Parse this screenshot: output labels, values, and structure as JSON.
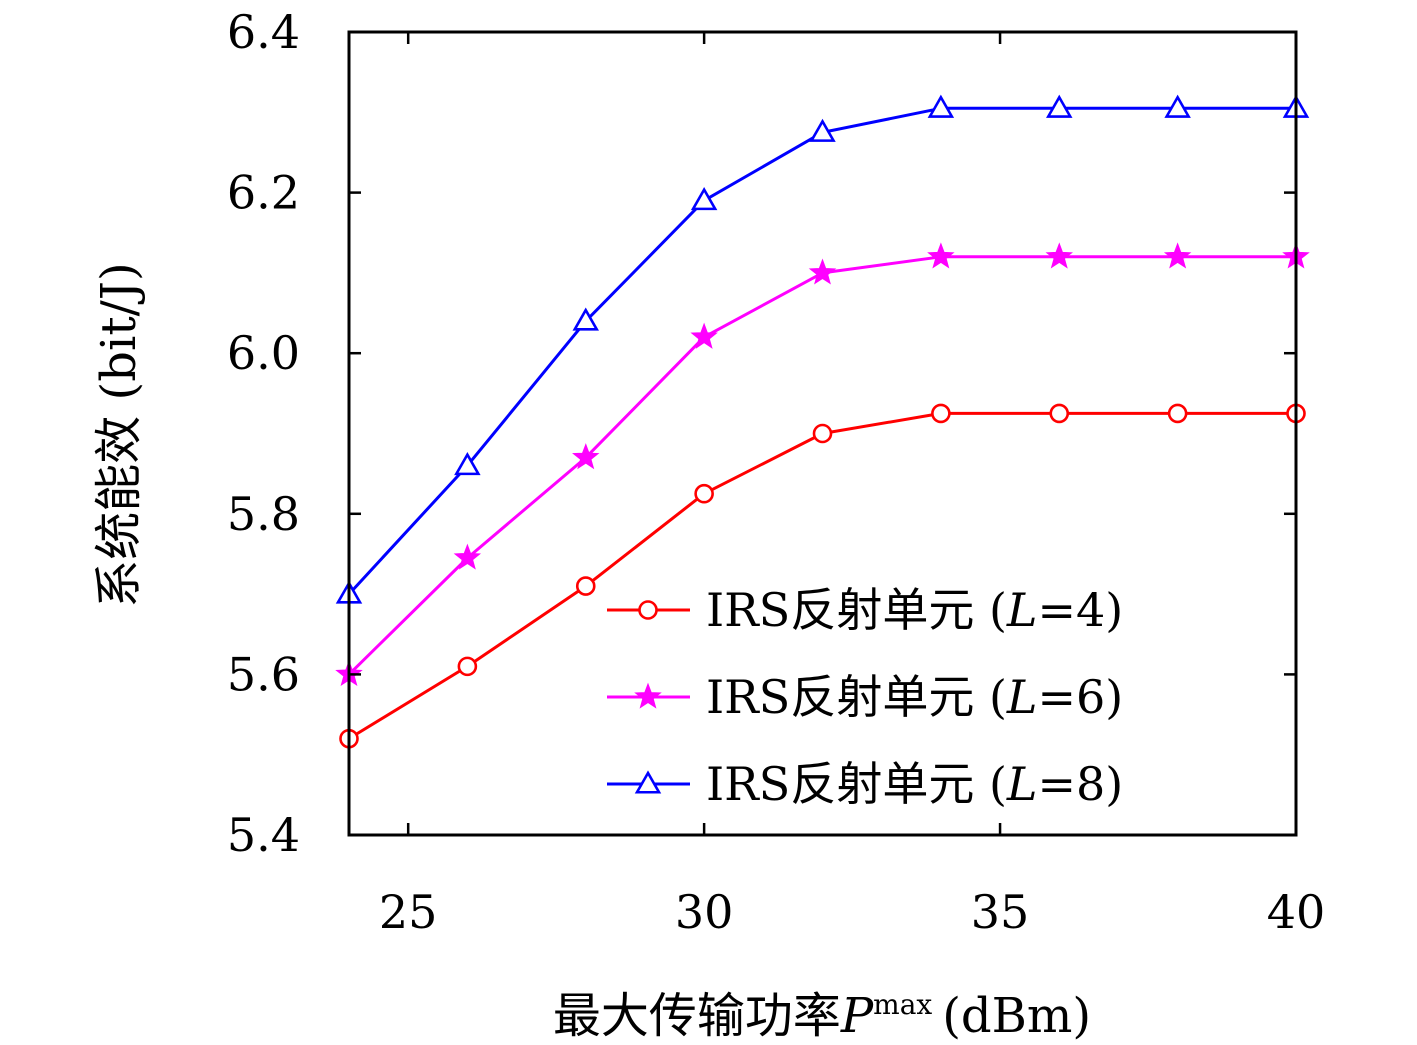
{
  "chart_data": {
    "type": "line",
    "xlabel_prefix": "最大传输功率",
    "xlabel_symbol": "P",
    "xlabel_sup": "max",
    "xlabel_unit": "(dBm)",
    "ylabel": "系统能效 (bit/J)",
    "xlim": [
      24,
      40
    ],
    "ylim": [
      5.4,
      6.4
    ],
    "xticks": [
      25,
      30,
      35,
      40
    ],
    "xtick_labels": [
      "25",
      "30",
      "35",
      "40"
    ],
    "yticks": [
      5.4,
      5.6,
      5.8,
      6.0,
      6.2,
      6.4
    ],
    "ytick_labels": [
      "5.4",
      "5.6",
      "5.8",
      "6.0",
      "6.2",
      "6.4"
    ],
    "grid": false,
    "legend_position": "bottom-right",
    "x": [
      24,
      26,
      28,
      30,
      32,
      34,
      36,
      38,
      40
    ],
    "series": [
      {
        "legend_prefix": "IRS反射单元 (",
        "legend_var": "L",
        "legend_suffix": "=4)",
        "color": "#ff0000",
        "marker": "circle",
        "values": [
          5.52,
          5.61,
          5.71,
          5.825,
          5.9,
          5.925,
          5.925,
          5.925,
          5.925
        ]
      },
      {
        "legend_prefix": "IRS反射单元 (",
        "legend_var": "L",
        "legend_suffix": "=6)",
        "color": "#ff00ff",
        "marker": "star",
        "values": [
          5.6,
          5.745,
          5.87,
          6.02,
          6.1,
          6.12,
          6.12,
          6.12,
          6.12
        ]
      },
      {
        "legend_prefix": "IRS反射单元 (",
        "legend_var": "L",
        "legend_suffix": "=8)",
        "color": "#0000ff",
        "marker": "triangle",
        "values": [
          5.7,
          5.86,
          6.04,
          6.19,
          6.275,
          6.305,
          6.305,
          6.305,
          6.305
        ]
      }
    ]
  }
}
